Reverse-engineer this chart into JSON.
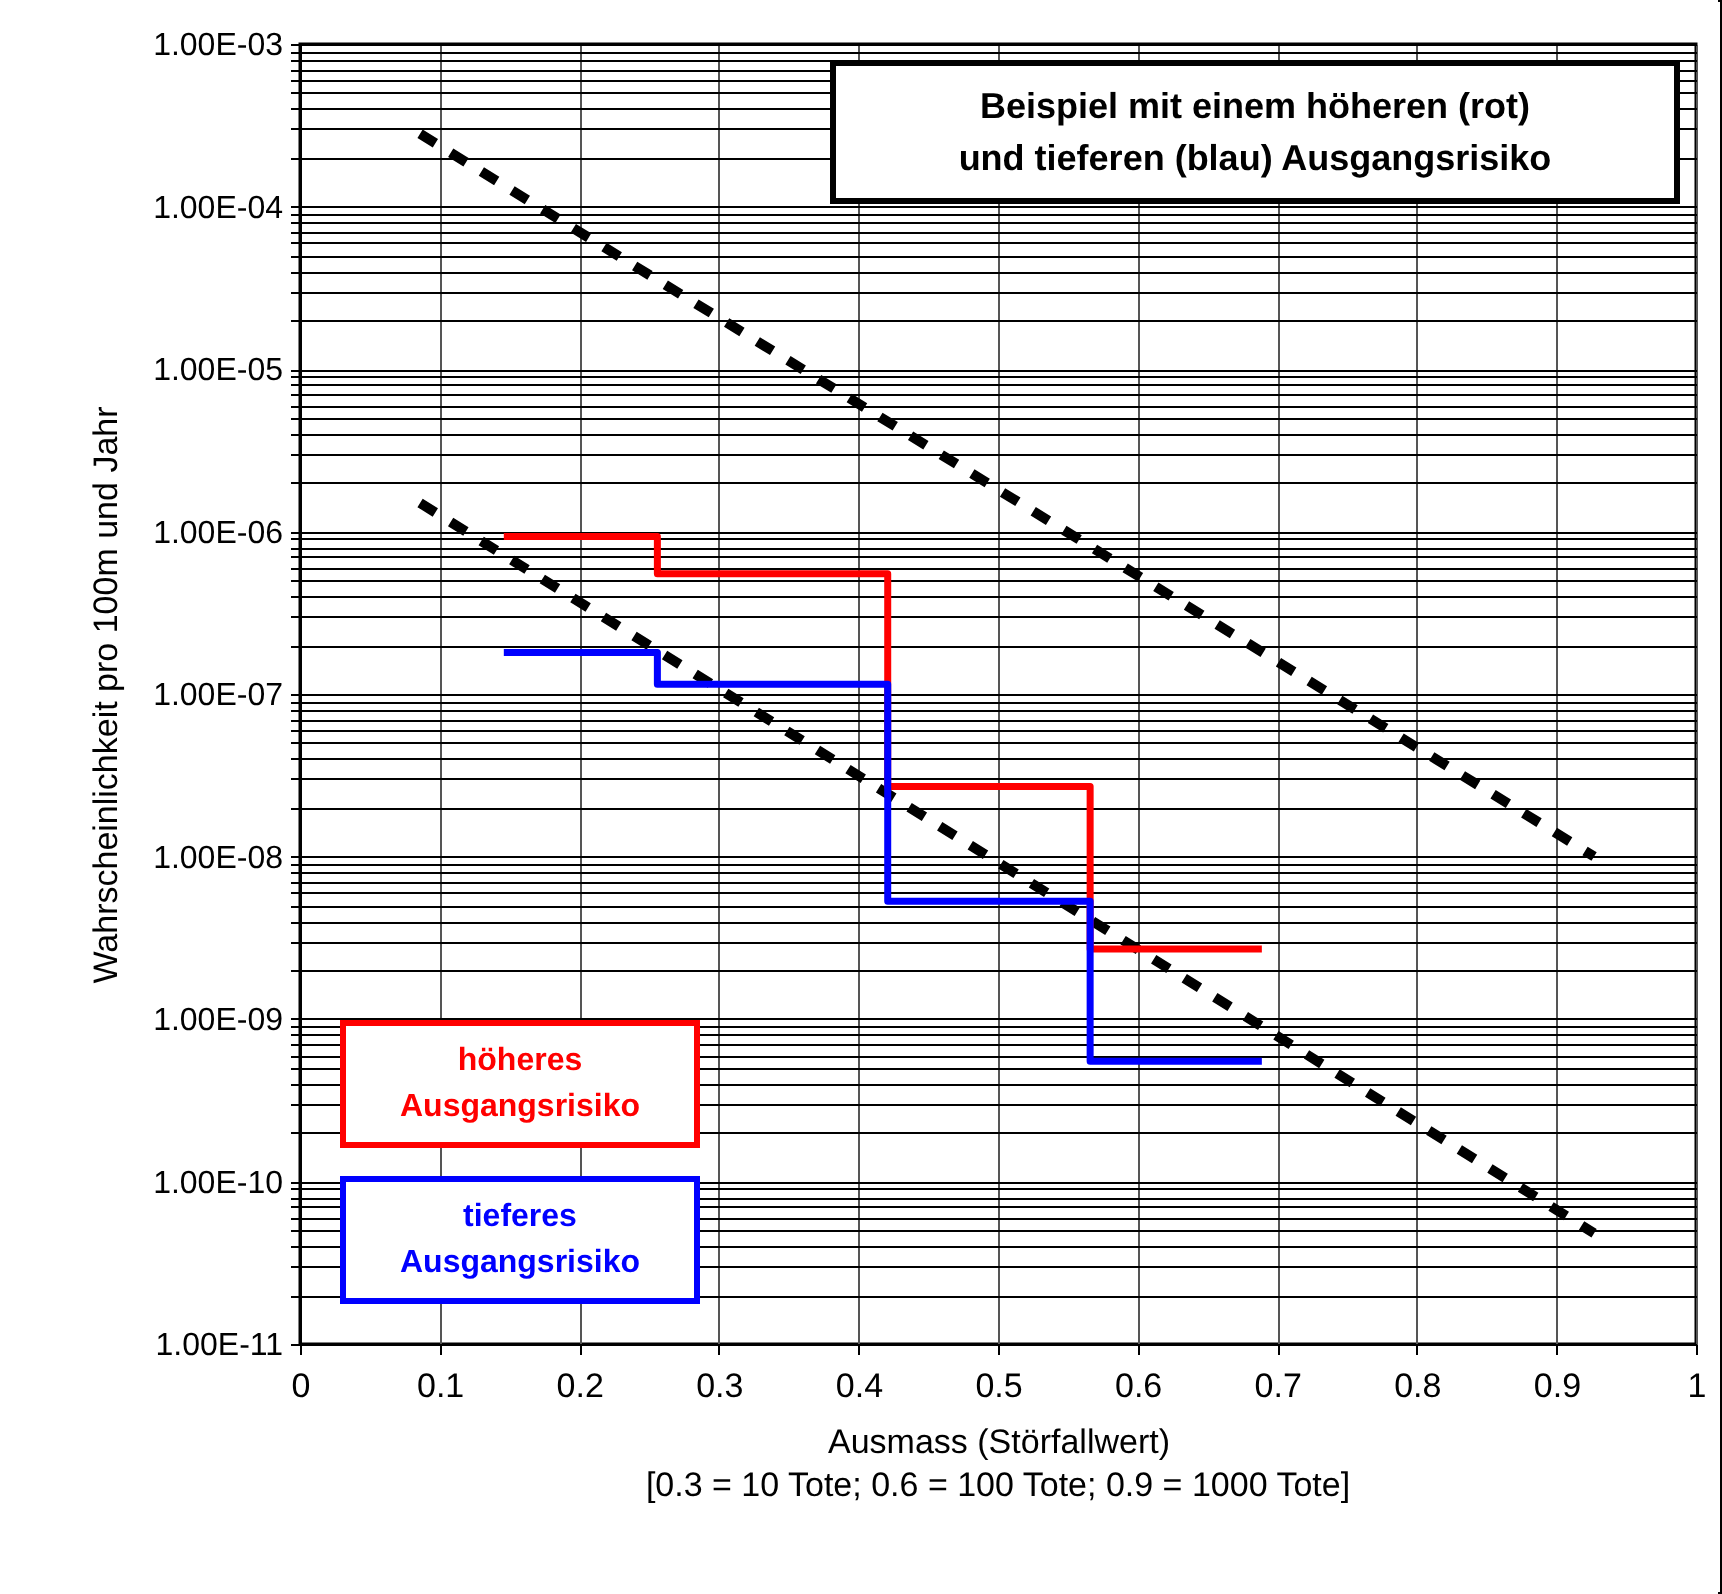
{
  "chart_data": {
    "type": "line",
    "title": "Beispiel mit einem höheren (rot)\nund tieferen (blau) Ausgangsrisiko",
    "xlabel": "Ausmass (Störfallwert)",
    "ylabel": "Wahrscheinlichkeit pro 100m und Jahr",
    "annotations": [
      "[0.3 = 10 Tote; 0.6 = 100 Tote; 0.9 = 1000 Tote]"
    ],
    "xlim": [
      0,
      1
    ],
    "xticks": [
      0,
      0.1,
      0.2,
      0.3,
      0.4,
      0.5,
      0.6,
      0.7,
      0.8,
      0.9,
      1
    ],
    "ylim": [
      1e-11,
      0.001
    ],
    "log": "y",
    "yticks": [
      {
        "value": 1e-11,
        "label": "1.00E-11"
      },
      {
        "value": 1e-10,
        "label": "1.00E-10"
      },
      {
        "value": 1e-09,
        "label": "1.00E-09"
      },
      {
        "value": 1e-08,
        "label": "1.00E-08"
      },
      {
        "value": 1e-07,
        "label": "1.00E-07"
      },
      {
        "value": 1e-06,
        "label": "1.00E-06"
      },
      {
        "value": 1e-05,
        "label": "1.00E-05"
      },
      {
        "value": 0.0001,
        "label": "1.00E-04"
      },
      {
        "value": 0.001,
        "label": "1.00E-03"
      }
    ],
    "grid": true,
    "legend": "bottom left",
    "series": [
      {
        "color": "#000000",
        "line_style": "dashed",
        "x": [
          0.086,
          0.927
        ],
        "values": [
          0.00028,
          1e-08
        ]
      },
      {
        "color": "#000000",
        "line_style": "dashed",
        "x": [
          0.086,
          0.927
        ],
        "values": [
          1.5e-06,
          4.8e-11
        ]
      },
      {
        "type": "step",
        "name": "höheres Ausgangsrisiko",
        "color": "#ff0000",
        "line_style": "solid",
        "x": [
          0.146,
          0.256,
          0.421,
          0.566,
          0.689
        ],
        "values": [
          9.3e-07,
          5.5e-07,
          2.7e-08,
          2.7e-09,
          2.7e-09
        ]
      },
      {
        "type": "step",
        "name": "tieferes Ausgangsrisiko",
        "color": "#0000ff",
        "line_style": "solid",
        "x": [
          0.146,
          0.256,
          0.421,
          0.566,
          0.689
        ],
        "values": [
          1.8e-07,
          1.15e-07,
          5.3e-09,
          5.5e-10,
          5.5e-10
        ]
      }
    ]
  }
}
